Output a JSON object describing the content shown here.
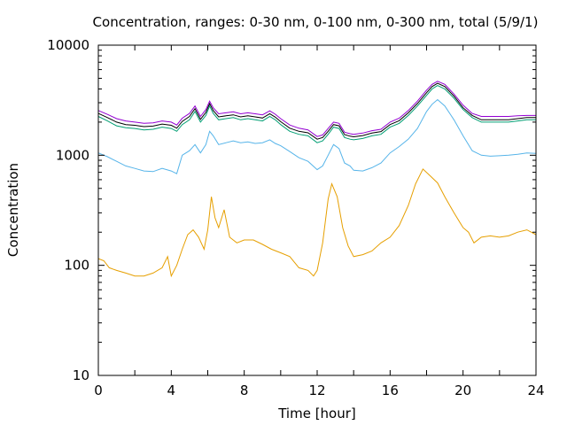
{
  "chart_data": {
    "type": "line",
    "title": "Concentration, ranges: 0-30 nm, 0-100 nm, 0-300 nm, total (5/9/1)",
    "xlabel": "Time [hour]",
    "ylabel": "Concentration",
    "xlim": [
      0,
      24
    ],
    "ylim": [
      10,
      10000
    ],
    "yscale": "log",
    "grid": false,
    "legend": "none",
    "x_ticks": [
      0,
      2,
      4,
      6,
      8,
      10,
      12,
      14,
      16,
      18,
      20,
      22,
      24
    ],
    "x_tick_labels": [
      "0",
      "4",
      "8",
      "12",
      "16",
      "20",
      "24"
    ],
    "x_tick_label_values": [
      0,
      4,
      8,
      12,
      16,
      20,
      24
    ],
    "y_ticks": [
      10,
      100,
      1000,
      10000
    ],
    "y_tick_labels": [
      "10",
      "100",
      "1000",
      "10000"
    ],
    "series": [
      {
        "color": "#e69f00",
        "x": [
          0,
          0.3,
          0.6,
          1,
          1.5,
          2,
          2.5,
          3,
          3.5,
          3.8,
          4,
          4.3,
          4.6,
          4.9,
          5.2,
          5.5,
          5.8,
          6,
          6.2,
          6.4,
          6.6,
          6.9,
          7.2,
          7.6,
          8,
          8.5,
          9,
          9.5,
          10,
          10.5,
          11,
          11.5,
          11.8,
          12,
          12.3,
          12.6,
          12.8,
          13.1,
          13.4,
          13.7,
          14,
          14.5,
          15,
          15.5,
          16,
          16.5,
          17,
          17.4,
          17.8,
          18.2,
          18.6,
          19,
          19.5,
          20,
          20.3,
          20.6,
          21,
          21.5,
          22,
          22.5,
          23,
          23.5,
          24
        ],
        "y": [
          115,
          110,
          95,
          90,
          85,
          80,
          80,
          85,
          95,
          120,
          80,
          100,
          140,
          190,
          210,
          180,
          140,
          210,
          420,
          270,
          220,
          320,
          180,
          160,
          170,
          170,
          155,
          140,
          130,
          120,
          95,
          90,
          80,
          90,
          160,
          400,
          550,
          420,
          220,
          150,
          120,
          125,
          135,
          160,
          180,
          230,
          350,
          550,
          750,
          650,
          560,
          420,
          300,
          220,
          200,
          160,
          180,
          185,
          180,
          185,
          200,
          210,
          190
        ]
      },
      {
        "color": "#56b4e9",
        "x": [
          0,
          0.5,
          1,
          1.5,
          2,
          2.5,
          3,
          3.5,
          4,
          4.3,
          4.6,
          5,
          5.3,
          5.6,
          5.9,
          6.1,
          6.3,
          6.6,
          7,
          7.4,
          7.8,
          8.2,
          8.6,
          9,
          9.4,
          9.7,
          10,
          10.5,
          11,
          11.5,
          12,
          12.3,
          12.6,
          12.9,
          13.2,
          13.5,
          13.8,
          14,
          14.5,
          15,
          15.5,
          16,
          16.5,
          17,
          17.5,
          18,
          18.3,
          18.6,
          19,
          19.5,
          20,
          20.5,
          21,
          21.5,
          22,
          22.5,
          23,
          23.5,
          24
        ],
        "y": [
          1050,
          970,
          880,
          800,
          760,
          720,
          710,
          760,
          720,
          680,
          1000,
          1100,
          1250,
          1050,
          1250,
          1650,
          1500,
          1250,
          1300,
          1350,
          1300,
          1320,
          1280,
          1300,
          1380,
          1280,
          1220,
          1080,
          950,
          880,
          740,
          800,
          1000,
          1250,
          1150,
          850,
          800,
          730,
          720,
          770,
          850,
          1050,
          1200,
          1400,
          1750,
          2500,
          2900,
          3200,
          2800,
          2100,
          1500,
          1100,
          1000,
          980,
          990,
          1000,
          1020,
          1050,
          1040
        ]
      },
      {
        "color": "#009e73",
        "x": [
          0,
          0.5,
          1,
          1.5,
          2,
          2.5,
          3,
          3.5,
          4,
          4.3,
          4.6,
          5,
          5.3,
          5.6,
          5.9,
          6.1,
          6.3,
          6.6,
          7,
          7.4,
          7.8,
          8.2,
          8.6,
          9,
          9.4,
          9.7,
          10,
          10.5,
          11,
          11.5,
          12,
          12.3,
          12.6,
          12.9,
          13.2,
          13.5,
          13.8,
          14,
          14.5,
          15,
          15.5,
          16,
          16.5,
          17,
          17.5,
          18,
          18.3,
          18.6,
          19,
          19.5,
          20,
          20.5,
          21,
          21.5,
          22,
          22.5,
          23,
          23.5,
          24
        ],
        "y": [
          2250,
          2050,
          1850,
          1780,
          1750,
          1700,
          1720,
          1800,
          1750,
          1650,
          1900,
          2100,
          2500,
          2000,
          2300,
          2800,
          2400,
          2100,
          2150,
          2200,
          2100,
          2150,
          2100,
          2050,
          2250,
          2100,
          1900,
          1650,
          1550,
          1500,
          1300,
          1350,
          1550,
          1800,
          1750,
          1450,
          1400,
          1380,
          1420,
          1500,
          1550,
          1800,
          1950,
          2300,
          2800,
          3500,
          4000,
          4300,
          4000,
          3300,
          2600,
          2200,
          2000,
          2000,
          2000,
          2000,
          2050,
          2100,
          2100
        ]
      },
      {
        "color": "#000000",
        "x": [
          0,
          0.5,
          1,
          1.5,
          2,
          2.5,
          3,
          3.5,
          4,
          4.3,
          4.6,
          5,
          5.3,
          5.6,
          5.9,
          6.1,
          6.3,
          6.6,
          7,
          7.4,
          7.8,
          8.2,
          8.6,
          9,
          9.4,
          9.7,
          10,
          10.5,
          11,
          11.5,
          12,
          12.3,
          12.6,
          12.9,
          13.2,
          13.5,
          13.8,
          14,
          14.5,
          15,
          15.5,
          16,
          16.5,
          17,
          17.5,
          18,
          18.3,
          18.6,
          19,
          19.5,
          20,
          20.5,
          21,
          21.5,
          22,
          22.5,
          23,
          23.5,
          24
        ],
        "y": [
          2400,
          2200,
          2000,
          1900,
          1870,
          1820,
          1840,
          1920,
          1870,
          1760,
          2030,
          2250,
          2650,
          2120,
          2450,
          2950,
          2550,
          2230,
          2280,
          2330,
          2230,
          2280,
          2230,
          2180,
          2380,
          2220,
          2020,
          1760,
          1650,
          1600,
          1400,
          1450,
          1650,
          1900,
          1850,
          1540,
          1490,
          1470,
          1510,
          1590,
          1640,
          1900,
          2060,
          2430,
          2950,
          3700,
          4200,
          4500,
          4200,
          3450,
          2700,
          2300,
          2100,
          2100,
          2100,
          2100,
          2150,
          2200,
          2200
        ]
      },
      {
        "color": "#9400d3",
        "x": [
          0,
          0.5,
          1,
          1.5,
          2,
          2.5,
          3,
          3.5,
          4,
          4.3,
          4.6,
          5,
          5.3,
          5.6,
          5.9,
          6.1,
          6.3,
          6.6,
          7,
          7.4,
          7.8,
          8.2,
          8.6,
          9,
          9.4,
          9.7,
          10,
          10.5,
          11,
          11.5,
          12,
          12.3,
          12.6,
          12.9,
          13.2,
          13.5,
          13.8,
          14,
          14.5,
          15,
          15.5,
          16,
          16.5,
          17,
          17.5,
          18,
          18.3,
          18.6,
          19,
          19.5,
          20,
          20.5,
          21,
          21.5,
          22,
          22.5,
          23,
          23.5,
          24
        ],
        "y": [
          2550,
          2350,
          2150,
          2050,
          2000,
          1950,
          1970,
          2050,
          2000,
          1880,
          2170,
          2400,
          2800,
          2250,
          2600,
          3100,
          2700,
          2380,
          2430,
          2480,
          2380,
          2430,
          2380,
          2330,
          2530,
          2360,
          2150,
          1880,
          1760,
          1700,
          1480,
          1530,
          1750,
          2000,
          1950,
          1620,
          1570,
          1550,
          1590,
          1670,
          1720,
          2000,
          2170,
          2550,
          3100,
          3900,
          4400,
          4700,
          4400,
          3600,
          2850,
          2400,
          2250,
          2250,
          2250,
          2250,
          2280,
          2300,
          2300
        ]
      }
    ]
  }
}
